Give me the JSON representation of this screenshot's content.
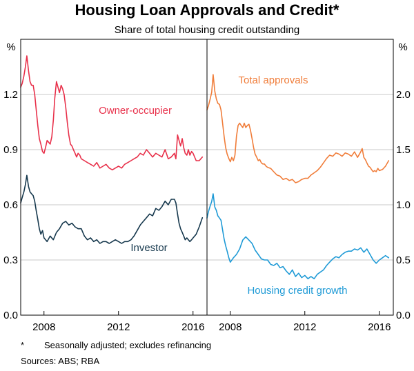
{
  "header": {
    "title": "Housing Loan Approvals and Credit*",
    "subtitle": "Share of total housing credit outstanding"
  },
  "footer": {
    "note_marker": "*",
    "note_text": "Seasonally adjusted; excludes refinancing",
    "sources": "Sources:   ABS; RBA"
  },
  "colors": {
    "owner_occupier": "#e8304a",
    "investor": "#16384d",
    "total_approvals": "#f07d3a",
    "housing_credit_growth": "#1e9ad6",
    "grid": "#c8c8c8"
  },
  "chart_data": [
    {
      "type": "line",
      "panel": "left",
      "unit_label": "%",
      "ylim": [
        0.0,
        1.5
      ],
      "yticks": [
        0.0,
        0.3,
        0.6,
        0.9,
        1.2
      ],
      "ytick_labels": [
        "0.0",
        "0.3",
        "0.6",
        "0.9",
        "1.2"
      ],
      "xlim": [
        2006.75,
        2016.75
      ],
      "xticks": [
        2008,
        2012,
        2016
      ],
      "xtick_labels": [
        "2008",
        "2012",
        "2016"
      ],
      "grid": true,
      "series": [
        {
          "name": "Owner-occupier",
          "label": "Owner-occupier",
          "color_key": "owner_occupier",
          "x": [
            2006.75,
            2006.83,
            2006.92,
            2007.0,
            2007.08,
            2007.17,
            2007.25,
            2007.33,
            2007.42,
            2007.5,
            2007.58,
            2007.67,
            2007.75,
            2007.83,
            2007.92,
            2008.0,
            2008.08,
            2008.17,
            2008.25,
            2008.33,
            2008.42,
            2008.5,
            2008.58,
            2008.67,
            2008.75,
            2008.83,
            2008.92,
            2009.0,
            2009.08,
            2009.17,
            2009.25,
            2009.33,
            2009.42,
            2009.5,
            2009.58,
            2009.67,
            2009.75,
            2009.83,
            2009.92,
            2010.0,
            2010.17,
            2010.33,
            2010.5,
            2010.67,
            2010.83,
            2011.0,
            2011.17,
            2011.33,
            2011.5,
            2011.67,
            2011.83,
            2012.0,
            2012.17,
            2012.33,
            2012.5,
            2012.67,
            2012.83,
            2013.0,
            2013.17,
            2013.33,
            2013.5,
            2013.67,
            2013.83,
            2014.0,
            2014.17,
            2014.33,
            2014.5,
            2014.67,
            2014.83,
            2015.0,
            2015.08,
            2015.17,
            2015.25,
            2015.33,
            2015.42,
            2015.5,
            2015.58,
            2015.67,
            2015.75,
            2015.83,
            2015.92,
            2016.0,
            2016.17,
            2016.33,
            2016.5
          ],
          "values": [
            1.24,
            1.26,
            1.3,
            1.35,
            1.41,
            1.33,
            1.27,
            1.25,
            1.25,
            1.2,
            1.12,
            1.03,
            0.96,
            0.93,
            0.89,
            0.88,
            0.91,
            0.95,
            0.94,
            0.93,
            0.97,
            1.06,
            1.18,
            1.27,
            1.24,
            1.21,
            1.25,
            1.23,
            1.2,
            1.13,
            1.05,
            0.98,
            0.93,
            0.92,
            0.9,
            0.88,
            0.86,
            0.88,
            0.87,
            0.85,
            0.84,
            0.83,
            0.82,
            0.81,
            0.83,
            0.8,
            0.81,
            0.82,
            0.8,
            0.79,
            0.8,
            0.81,
            0.8,
            0.82,
            0.83,
            0.84,
            0.85,
            0.86,
            0.88,
            0.87,
            0.9,
            0.88,
            0.86,
            0.88,
            0.87,
            0.86,
            0.9,
            0.85,
            0.86,
            0.88,
            0.85,
            0.98,
            0.95,
            0.92,
            0.96,
            0.91,
            0.88,
            0.87,
            0.9,
            0.87,
            0.89,
            0.88,
            0.84,
            0.84,
            0.86
          ]
        },
        {
          "name": "Investor",
          "label": "Investor",
          "color_key": "investor",
          "x": [
            2006.75,
            2006.83,
            2006.92,
            2007.0,
            2007.08,
            2007.17,
            2007.25,
            2007.33,
            2007.42,
            2007.5,
            2007.58,
            2007.67,
            2007.75,
            2007.83,
            2007.92,
            2008.0,
            2008.17,
            2008.33,
            2008.5,
            2008.67,
            2008.83,
            2009.0,
            2009.17,
            2009.33,
            2009.5,
            2009.67,
            2009.83,
            2010.0,
            2010.17,
            2010.33,
            2010.5,
            2010.67,
            2010.83,
            2011.0,
            2011.17,
            2011.33,
            2011.5,
            2011.67,
            2011.83,
            2012.0,
            2012.17,
            2012.33,
            2012.5,
            2012.67,
            2012.83,
            2013.0,
            2013.17,
            2013.33,
            2013.5,
            2013.67,
            2013.83,
            2014.0,
            2014.17,
            2014.33,
            2014.5,
            2014.67,
            2014.83,
            2015.0,
            2015.08,
            2015.17,
            2015.25,
            2015.33,
            2015.42,
            2015.5,
            2015.58,
            2015.67,
            2015.75,
            2015.83,
            2015.92,
            2016.0,
            2016.17,
            2016.33,
            2016.5
          ],
          "values": [
            0.61,
            0.64,
            0.67,
            0.71,
            0.76,
            0.7,
            0.67,
            0.66,
            0.65,
            0.62,
            0.57,
            0.52,
            0.47,
            0.44,
            0.46,
            0.42,
            0.4,
            0.43,
            0.41,
            0.45,
            0.47,
            0.5,
            0.51,
            0.49,
            0.5,
            0.48,
            0.47,
            0.47,
            0.43,
            0.41,
            0.42,
            0.4,
            0.41,
            0.39,
            0.4,
            0.4,
            0.39,
            0.4,
            0.41,
            0.4,
            0.39,
            0.4,
            0.4,
            0.41,
            0.43,
            0.46,
            0.49,
            0.51,
            0.53,
            0.55,
            0.54,
            0.58,
            0.57,
            0.59,
            0.62,
            0.6,
            0.63,
            0.63,
            0.61,
            0.55,
            0.5,
            0.47,
            0.45,
            0.43,
            0.41,
            0.42,
            0.41,
            0.4,
            0.41,
            0.42,
            0.44,
            0.48,
            0.53
          ]
        }
      ]
    },
    {
      "type": "line",
      "panel": "right",
      "unit_label": "%",
      "ylim": [
        0.0,
        2.5
      ],
      "yticks": [
        0.0,
        0.5,
        1.0,
        1.5,
        2.0
      ],
      "ytick_labels": [
        "0.0",
        "0.5",
        "1.0",
        "1.5",
        "2.0"
      ],
      "xlim": [
        2006.75,
        2016.75
      ],
      "xticks": [
        2008,
        2012,
        2016
      ],
      "xtick_labels": [
        "2008",
        "2012",
        "2016"
      ],
      "grid": true,
      "series": [
        {
          "name": "Total approvals",
          "label": "Total approvals",
          "color_key": "total_approvals",
          "x": [
            2006.75,
            2006.83,
            2006.92,
            2007.0,
            2007.08,
            2007.17,
            2007.25,
            2007.33,
            2007.42,
            2007.5,
            2007.58,
            2007.67,
            2007.75,
            2007.83,
            2007.92,
            2008.0,
            2008.08,
            2008.17,
            2008.25,
            2008.33,
            2008.42,
            2008.5,
            2008.58,
            2008.67,
            2008.75,
            2008.83,
            2008.92,
            2009.0,
            2009.08,
            2009.17,
            2009.25,
            2009.33,
            2009.42,
            2009.5,
            2009.58,
            2009.67,
            2009.75,
            2009.83,
            2009.92,
            2010.0,
            2010.17,
            2010.33,
            2010.5,
            2010.67,
            2010.83,
            2011.0,
            2011.17,
            2011.33,
            2011.5,
            2011.67,
            2011.83,
            2012.0,
            2012.17,
            2012.33,
            2012.5,
            2012.67,
            2012.83,
            2013.0,
            2013.17,
            2013.33,
            2013.5,
            2013.67,
            2013.83,
            2014.0,
            2014.17,
            2014.33,
            2014.5,
            2014.67,
            2014.83,
            2015.0,
            2015.08,
            2015.17,
            2015.25,
            2015.33,
            2015.42,
            2015.5,
            2015.58,
            2015.67,
            2015.75,
            2015.83,
            2015.92,
            2016.0,
            2016.17,
            2016.33,
            2016.5
          ],
          "values": [
            1.86,
            1.9,
            1.96,
            2.02,
            2.18,
            2.03,
            1.96,
            1.92,
            1.91,
            1.86,
            1.75,
            1.62,
            1.52,
            1.46,
            1.42,
            1.39,
            1.43,
            1.4,
            1.45,
            1.62,
            1.72,
            1.74,
            1.72,
            1.7,
            1.74,
            1.7,
            1.72,
            1.73,
            1.68,
            1.6,
            1.52,
            1.46,
            1.43,
            1.4,
            1.41,
            1.38,
            1.37,
            1.37,
            1.35,
            1.34,
            1.33,
            1.3,
            1.27,
            1.26,
            1.23,
            1.24,
            1.22,
            1.23,
            1.2,
            1.21,
            1.23,
            1.24,
            1.24,
            1.27,
            1.29,
            1.31,
            1.34,
            1.38,
            1.42,
            1.45,
            1.44,
            1.47,
            1.46,
            1.44,
            1.47,
            1.46,
            1.44,
            1.48,
            1.43,
            1.48,
            1.51,
            1.43,
            1.41,
            1.38,
            1.35,
            1.34,
            1.32,
            1.3,
            1.31,
            1.3,
            1.33,
            1.31,
            1.32,
            1.35,
            1.4
          ]
        },
        {
          "name": "Housing credit growth",
          "label": "Housing credit growth",
          "color_key": "housing_credit_growth",
          "x": [
            2006.75,
            2006.83,
            2006.92,
            2007.0,
            2007.08,
            2007.17,
            2007.25,
            2007.33,
            2007.42,
            2007.5,
            2007.58,
            2007.67,
            2007.75,
            2007.83,
            2007.92,
            2008.0,
            2008.17,
            2008.33,
            2008.5,
            2008.67,
            2008.83,
            2009.0,
            2009.17,
            2009.33,
            2009.5,
            2009.67,
            2009.83,
            2010.0,
            2010.17,
            2010.33,
            2010.5,
            2010.67,
            2010.83,
            2011.0,
            2011.17,
            2011.33,
            2011.5,
            2011.67,
            2011.83,
            2012.0,
            2012.17,
            2012.33,
            2012.5,
            2012.67,
            2012.83,
            2013.0,
            2013.17,
            2013.33,
            2013.5,
            2013.67,
            2013.83,
            2014.0,
            2014.17,
            2014.33,
            2014.5,
            2014.67,
            2014.83,
            2015.0,
            2015.17,
            2015.33,
            2015.5,
            2015.67,
            2015.83,
            2016.0,
            2016.17,
            2016.33,
            2016.5
          ],
          "values": [
            0.88,
            0.94,
            0.99,
            1.03,
            1.1,
            0.98,
            0.95,
            0.9,
            0.88,
            0.86,
            0.78,
            0.69,
            0.63,
            0.58,
            0.52,
            0.48,
            0.52,
            0.55,
            0.6,
            0.68,
            0.71,
            0.68,
            0.65,
            0.59,
            0.55,
            0.51,
            0.5,
            0.5,
            0.46,
            0.45,
            0.47,
            0.43,
            0.44,
            0.4,
            0.37,
            0.41,
            0.35,
            0.38,
            0.34,
            0.36,
            0.33,
            0.35,
            0.33,
            0.37,
            0.39,
            0.41,
            0.45,
            0.48,
            0.51,
            0.53,
            0.52,
            0.55,
            0.57,
            0.58,
            0.58,
            0.6,
            0.59,
            0.61,
            0.57,
            0.6,
            0.55,
            0.5,
            0.47,
            0.5,
            0.52,
            0.54,
            0.52
          ]
        }
      ]
    }
  ]
}
